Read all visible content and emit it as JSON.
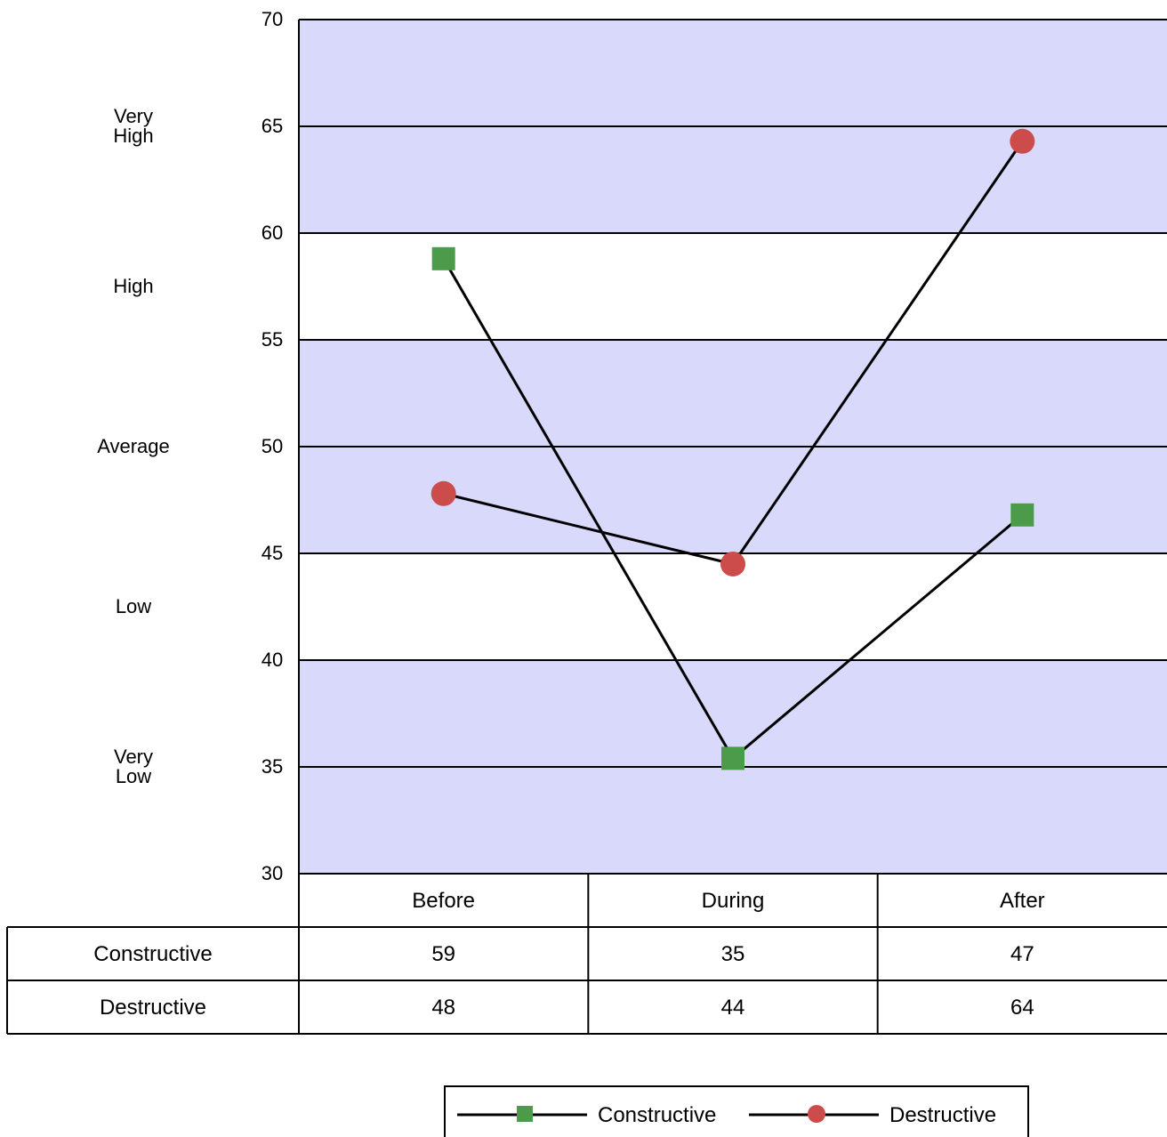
{
  "chart_data": {
    "type": "line",
    "categories": [
      "Before",
      "During",
      "After"
    ],
    "series": [
      {
        "name": "Constructive",
        "values": [
          59,
          35,
          47
        ],
        "plotted_values": [
          58.8,
          35.4,
          46.8
        ],
        "marker": "square",
        "color": "#4b9b4b"
      },
      {
        "name": "Destructive",
        "values": [
          48,
          44,
          64
        ],
        "plotted_values": [
          47.8,
          44.5,
          64.3
        ],
        "marker": "circle",
        "color": "#cc4b4b"
      }
    ],
    "ylim": [
      30,
      70
    ],
    "yticks": [
      30,
      35,
      40,
      45,
      50,
      55,
      60,
      65,
      70
    ],
    "line_color": "#000000",
    "bands": [
      {
        "range": [
          60,
          70
        ],
        "label": "Very High",
        "shaded": true
      },
      {
        "range": [
          55,
          60
        ],
        "label": "High",
        "shaded": false
      },
      {
        "range": [
          45,
          55
        ],
        "label": "Average",
        "shaded": true
      },
      {
        "range": [
          40,
          45
        ],
        "label": "Low",
        "shaded": false
      },
      {
        "range": [
          30,
          40
        ],
        "label": "Very Low",
        "shaded": true
      }
    ],
    "band_color": "#d9d9fb",
    "grid": true,
    "legend_position": "bottom"
  }
}
